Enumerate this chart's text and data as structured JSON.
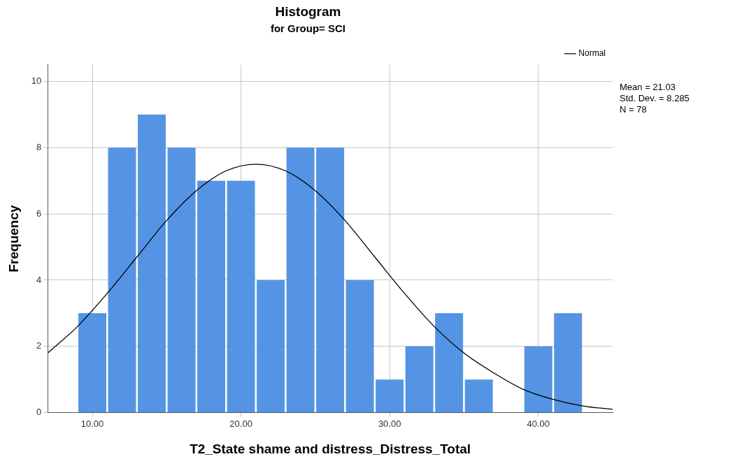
{
  "chart_data": {
    "type": "histogram",
    "title": "Histogram",
    "subtitle": "for Group= SCI",
    "xlabel": "T2_State shame and distress_Distress_Total",
    "ylabel": "Frequency",
    "series": [
      {
        "color": "#5594e4",
        "bins": [
          9,
          11,
          13,
          15,
          17,
          19,
          21,
          23,
          25,
          27,
          29,
          31,
          33,
          35,
          37,
          39,
          41,
          43
        ],
        "values": [
          3,
          8,
          9,
          8,
          7,
          7,
          4,
          8,
          8,
          4,
          1,
          2,
          3,
          1,
          0,
          2,
          3
        ]
      },
      {
        "type": "line",
        "name": "Normal",
        "color": "#000000",
        "x": [
          7,
          9,
          11,
          13,
          15,
          17,
          19,
          21,
          23,
          25,
          27,
          29,
          31,
          33,
          35,
          37,
          39,
          41,
          43,
          45
        ],
        "values": [
          1.8,
          2.6,
          3.6,
          4.7,
          5.8,
          6.7,
          7.3,
          7.5,
          7.3,
          6.7,
          5.8,
          4.7,
          3.6,
          2.6,
          1.8,
          1.2,
          0.7,
          0.4,
          0.2,
          0.1
        ]
      }
    ],
    "xlim": [
      7,
      45
    ],
    "xticks": [
      {
        "value": 10,
        "label": "10.00"
      },
      {
        "value": 20,
        "label": "20.00"
      },
      {
        "value": 30,
        "label": "30.00"
      },
      {
        "value": 40,
        "label": "40.00"
      }
    ],
    "ylim": [
      0,
      10.5
    ],
    "yticks": [
      0,
      2,
      4,
      6,
      8,
      10
    ],
    "grid": true,
    "legend": "top right",
    "marker": "none",
    "annotations": [
      "Mean = 21.03",
      "Std. Dev. = 8.285",
      "N = 78"
    ]
  }
}
